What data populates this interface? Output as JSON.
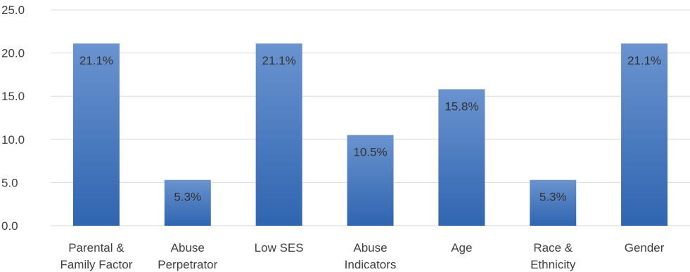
{
  "chart_data": {
    "type": "bar",
    "categories": [
      [
        "Parental &",
        "Family Factor"
      ],
      [
        "Abuse",
        "Perpetrator"
      ],
      [
        "Low SES"
      ],
      [
        "Abuse",
        "Indicators"
      ],
      [
        "Age"
      ],
      [
        "Race &",
        "Ethnicity"
      ],
      [
        "Gender"
      ]
    ],
    "values": [
      21.1,
      5.3,
      21.1,
      10.5,
      15.8,
      5.3,
      21.1
    ],
    "data_labels": [
      "21.1%",
      "5.3%",
      "21.1%",
      "10.5%",
      "15.8%",
      "5.3%",
      "21.1%"
    ],
    "y_ticks": [
      "0.0",
      "5.0",
      "10.0",
      "15.0",
      "20.0",
      "25.0"
    ],
    "ylim": [
      0,
      25
    ],
    "grid": true,
    "legend": "none",
    "colors": {
      "bar_top": "#6a93cf",
      "bar_bottom": "#2f65b0",
      "gridline": "#d9d9d9",
      "text": "#404040"
    }
  }
}
